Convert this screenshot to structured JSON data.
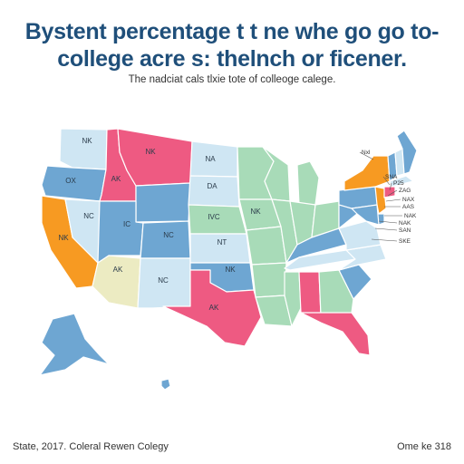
{
  "title": {
    "line1": "Bystent percentage t t ne whe go go to-",
    "line2": "college acre s: thelnch or ficener."
  },
  "subtitle": "The nadciat cals tlxie tote of colleoge calege.",
  "footer": {
    "left": "State, 2017. Coleral Rewen Colegy",
    "right": "Ome ke 318"
  },
  "palette": {
    "blue": "#6ea6d2",
    "light_blue": "#cfe6f3",
    "green": "#a8dbb8",
    "pink": "#ee5a82",
    "orange": "#f79a22",
    "yellow": "#ecebc2"
  },
  "states": [
    {
      "id": "wa",
      "label": "NK",
      "color": "light_blue"
    },
    {
      "id": "or",
      "label": "OX",
      "color": "blue"
    },
    {
      "id": "ca",
      "label": "NK",
      "color": "orange"
    },
    {
      "id": "nv",
      "label": "NC",
      "color": "light_blue"
    },
    {
      "id": "id",
      "label": "AK",
      "color": "pink"
    },
    {
      "id": "mt",
      "label": "NK",
      "color": "pink"
    },
    {
      "id": "wy",
      "label": "",
      "color": "blue"
    },
    {
      "id": "ut",
      "label": "IC",
      "color": "blue"
    },
    {
      "id": "co",
      "label": "NC",
      "color": "blue"
    },
    {
      "id": "az",
      "label": "AK",
      "color": "yellow"
    },
    {
      "id": "nm",
      "label": "NC",
      "color": "light_blue"
    },
    {
      "id": "nd",
      "label": "NA",
      "color": "light_blue"
    },
    {
      "id": "sd",
      "label": "DA",
      "color": "light_blue"
    },
    {
      "id": "ne",
      "label": "IVC",
      "color": "green"
    },
    {
      "id": "ks",
      "label": "NT",
      "color": "light_blue"
    },
    {
      "id": "ok",
      "label": "NK",
      "color": "blue"
    },
    {
      "id": "tx",
      "label": "AK",
      "color": "pink"
    },
    {
      "id": "mn",
      "label": "",
      "color": "green"
    },
    {
      "id": "ia",
      "label": "NK",
      "color": "green"
    },
    {
      "id": "mo",
      "label": "",
      "color": "green"
    },
    {
      "id": "ar",
      "label": "",
      "color": "green"
    },
    {
      "id": "la",
      "label": "",
      "color": "green"
    },
    {
      "id": "wi",
      "label": "",
      "color": "green"
    },
    {
      "id": "il",
      "label": "",
      "color": "green"
    },
    {
      "id": "mi",
      "label": "",
      "color": "green"
    },
    {
      "id": "in",
      "label": "",
      "color": "green"
    },
    {
      "id": "oh",
      "label": "",
      "color": "green"
    },
    {
      "id": "ky",
      "label": "",
      "color": "blue"
    },
    {
      "id": "tn",
      "label": "",
      "color": "light_blue"
    },
    {
      "id": "ms",
      "label": "",
      "color": "green"
    },
    {
      "id": "al",
      "label": "",
      "color": "pink"
    },
    {
      "id": "ga",
      "label": "",
      "color": "green"
    },
    {
      "id": "fl",
      "label": "",
      "color": "pink"
    },
    {
      "id": "sc",
      "label": "",
      "color": "blue"
    },
    {
      "id": "nc",
      "label": "",
      "color": "light_blue"
    },
    {
      "id": "va",
      "label": "",
      "color": "light_blue"
    },
    {
      "id": "wv",
      "label": "",
      "color": "blue"
    },
    {
      "id": "pa",
      "label": "",
      "color": "blue"
    },
    {
      "id": "ny",
      "label": "",
      "color": "orange"
    },
    {
      "id": "nj",
      "label": "",
      "color": "orange"
    },
    {
      "id": "de",
      "label": "",
      "color": "blue"
    },
    {
      "id": "md",
      "label": "",
      "color": "blue"
    },
    {
      "id": "vt",
      "label": "",
      "color": "blue"
    },
    {
      "id": "nh",
      "label": "",
      "color": "light_blue"
    },
    {
      "id": "me",
      "label": "",
      "color": "blue"
    },
    {
      "id": "ma",
      "label": "",
      "color": "light_blue"
    },
    {
      "id": "ct",
      "label": "",
      "color": "pink"
    },
    {
      "id": "ak",
      "label": "",
      "color": "blue"
    },
    {
      "id": "hi",
      "label": "",
      "color": "blue"
    }
  ],
  "callouts": [
    "Nxl",
    "SNA",
    "P25",
    "ZAG",
    "NAX",
    "AAS",
    "NAK",
    "NAK",
    "SAN",
    "SKE"
  ]
}
